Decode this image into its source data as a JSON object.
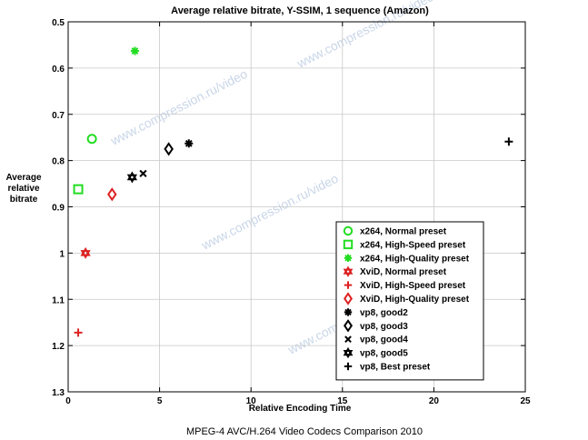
{
  "chart_data": {
    "type": "scatter",
    "title": "Average relative bitrate, Y-SSIM, 1 sequence (Amazon)",
    "xlabel": "Relative Encoding Time",
    "ylabel": [
      "Average",
      "relative",
      "bitrate"
    ],
    "xlim": [
      0,
      25
    ],
    "ylim": [
      0.5,
      1.3
    ],
    "y_reversed": true,
    "xticks": [
      "0",
      "5",
      "10",
      "15",
      "20",
      "25"
    ],
    "yticks": [
      "0.5",
      "0.6",
      "0.7",
      "0.8",
      "0.9",
      "1",
      "1.1",
      "1.2",
      "1.3"
    ],
    "grid": true,
    "legend_position": "bottom-right",
    "series": [
      {
        "name": "x264, Normal preset",
        "marker": "circle",
        "color": "#22dd22",
        "x": [
          1.3
        ],
        "y": [
          0.753
        ]
      },
      {
        "name": "x264, High-Speed preset",
        "marker": "square",
        "color": "#22dd22",
        "x": [
          0.55
        ],
        "y": [
          0.862
        ]
      },
      {
        "name": "x264, High-Quality preset",
        "marker": "asterisk",
        "color": "#22dd22",
        "x": [
          3.65
        ],
        "y": [
          0.563
        ]
      },
      {
        "name": "XviD, Normal preset",
        "marker": "hexagram",
        "color": "#dd2222",
        "x": [
          0.95
        ],
        "y": [
          1.0
        ]
      },
      {
        "name": "XviD, High-Speed preset",
        "marker": "plus",
        "color": "#dd2222",
        "x": [
          0.55
        ],
        "y": [
          1.172
        ]
      },
      {
        "name": "XviD, High-Quality preset",
        "marker": "diamond",
        "color": "#dd2222",
        "x": [
          2.4
        ],
        "y": [
          0.873
        ]
      },
      {
        "name": "vp8, good2",
        "marker": "asterisk",
        "color": "#000000",
        "x": [
          6.6
        ],
        "y": [
          0.763
        ]
      },
      {
        "name": "vp8, good3",
        "marker": "diamond",
        "color": "#000000",
        "x": [
          5.5
        ],
        "y": [
          0.775
        ]
      },
      {
        "name": "vp8, good4",
        "marker": "cross",
        "color": "#000000",
        "x": [
          4.1
        ],
        "y": [
          0.828
        ]
      },
      {
        "name": "vp8, good5",
        "marker": "hexagram",
        "color": "#000000",
        "x": [
          3.5
        ],
        "y": [
          0.836
        ]
      },
      {
        "name": "vp8, Best preset",
        "marker": "plus",
        "color": "#000000",
        "x": [
          24.1
        ],
        "y": [
          0.759
        ]
      }
    ]
  },
  "watermark": "www.compression.ru/video",
  "footer": "MPEG-4 AVC/H.264 Video Codecs Comparison 2010"
}
